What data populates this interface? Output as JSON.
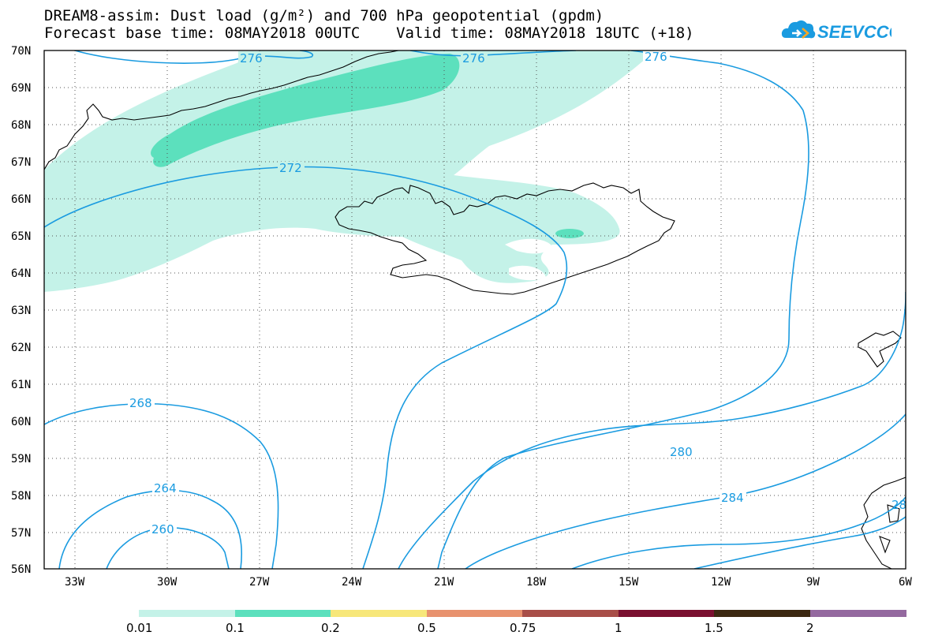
{
  "title": {
    "line1": "DREAM8-assim: Dust load (g/m²) and 700 hPa geopotential (gpdm)",
    "line2": "Forecast base time: 08MAY2018 00UTC    Valid time: 08MAY2018 18UTC (+18)"
  },
  "logo": {
    "text": "SEEVCCC",
    "icon": "cloud-logo-icon",
    "color": "#1a9be0"
  },
  "map": {
    "lat_labels": [
      "70N",
      "69N",
      "68N",
      "67N",
      "66N",
      "65N",
      "64N",
      "63N",
      "62N",
      "61N",
      "60N",
      "59N",
      "58N",
      "57N",
      "56N"
    ],
    "lon_labels": [
      "33W",
      "30W",
      "27W",
      "24W",
      "21W",
      "18W",
      "15W",
      "12W",
      "9W",
      "6W"
    ],
    "contour_labels": [
      "276",
      "276",
      "276",
      "272",
      "268",
      "264",
      "260",
      "280",
      "284",
      "28"
    ],
    "contour_color": "#1a9be0",
    "coastline_color": "#000000"
  },
  "colorbar": {
    "labels": [
      "0.01",
      "0.1",
      "0.2",
      "0.5",
      "0.75",
      "1",
      "1.5",
      "2"
    ],
    "colors": [
      "#c4f2e8",
      "#5ce0bd",
      "#f7e77a",
      "#e8926e",
      "#a84e48",
      "#7a1030",
      "#3c2812",
      "#94699f"
    ]
  }
}
